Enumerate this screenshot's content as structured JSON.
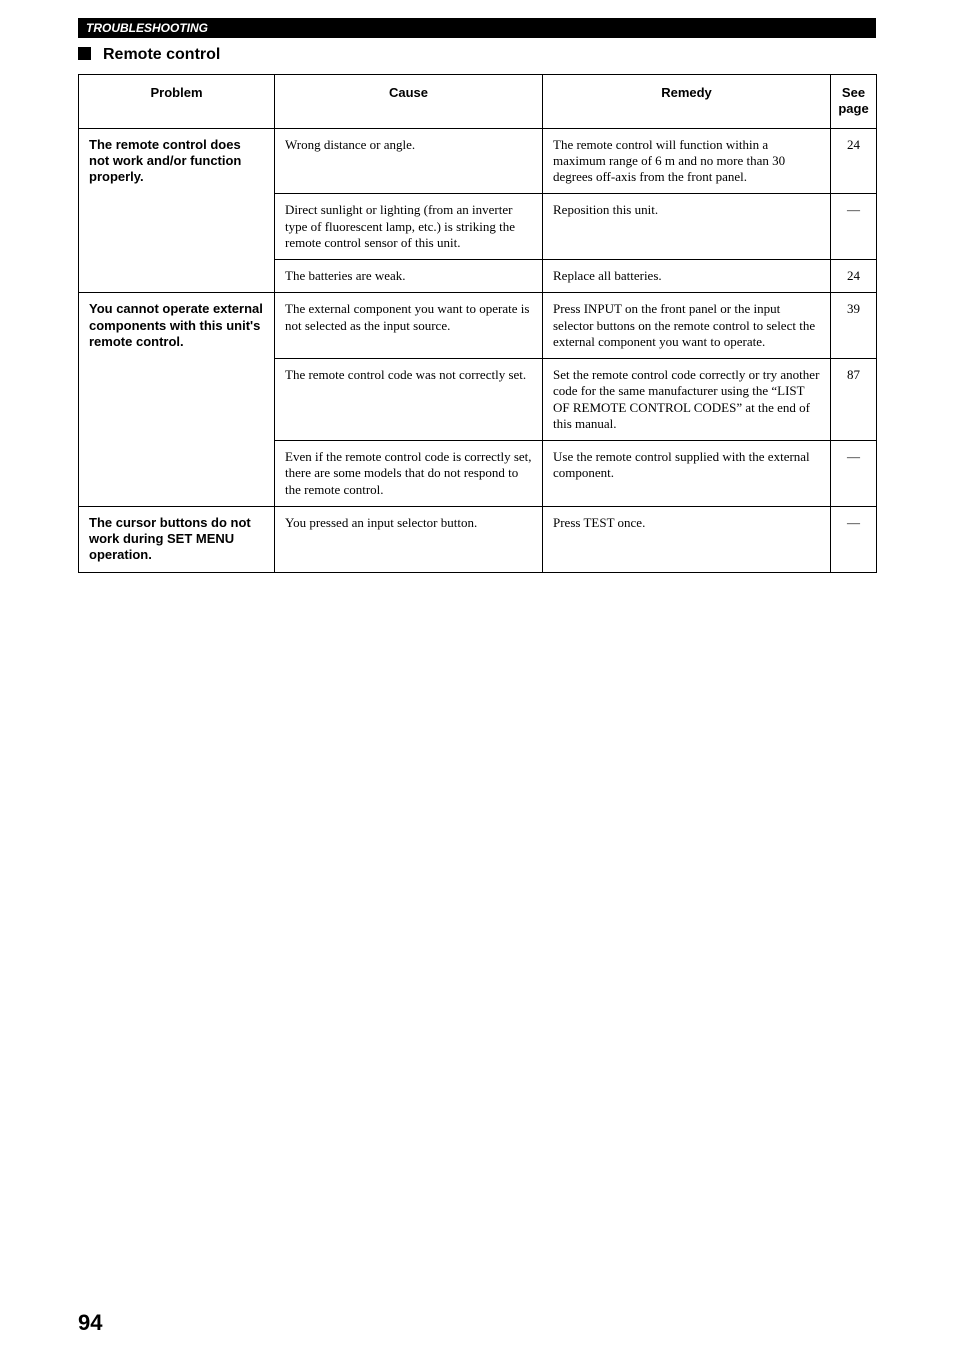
{
  "header": {
    "title": "TROUBLESHOOTING"
  },
  "section": {
    "title": "Remote control"
  },
  "table": {
    "headers": {
      "problem": "Problem",
      "cause": "Cause",
      "remedy": "Remedy",
      "page": "See page"
    },
    "rows": [
      {
        "problem": "The remote control does not work and/or function properly.",
        "cause": "Wrong distance or angle.",
        "remedy": "The remote control will function within a maximum range of 6 m and no more than 30 degrees off-axis from the front panel.",
        "page": "24"
      },
      {
        "problem": "",
        "cause": "Direct sunlight or lighting (from an inverter type of fluorescent lamp, etc.) is striking the remote control sensor of this unit.",
        "remedy": "Reposition this unit.",
        "page": "—"
      },
      {
        "problem": "",
        "cause": "The batteries are weak.",
        "remedy": "Replace all batteries.",
        "page": "24"
      },
      {
        "problem": "You cannot operate external components with this unit's remote control.",
        "cause": "The external component you want to operate is not selected as the input source.",
        "remedy": "Press INPUT on the front panel or the input selector buttons on the remote control to select the external component you want to operate.",
        "page": "39"
      },
      {
        "problem": "",
        "cause": "The remote control code was not correctly set.",
        "remedy": "Set the remote control code correctly or try another code for the same manufacturer using the “LIST OF REMOTE CONTROL CODES” at the end of this manual.",
        "page": "87"
      },
      {
        "problem": "",
        "cause": "Even if the remote control code is correctly set, there are some models that do not respond to the remote control.",
        "remedy": "Use the remote control supplied with the external component.",
        "page": "—"
      },
      {
        "problem": "The cursor buttons do not work during SET MENU operation.",
        "cause": "You pressed an input selector button.",
        "remedy": "Press TEST once.",
        "page": "—"
      }
    ]
  },
  "footer": {
    "page_number": "94"
  }
}
